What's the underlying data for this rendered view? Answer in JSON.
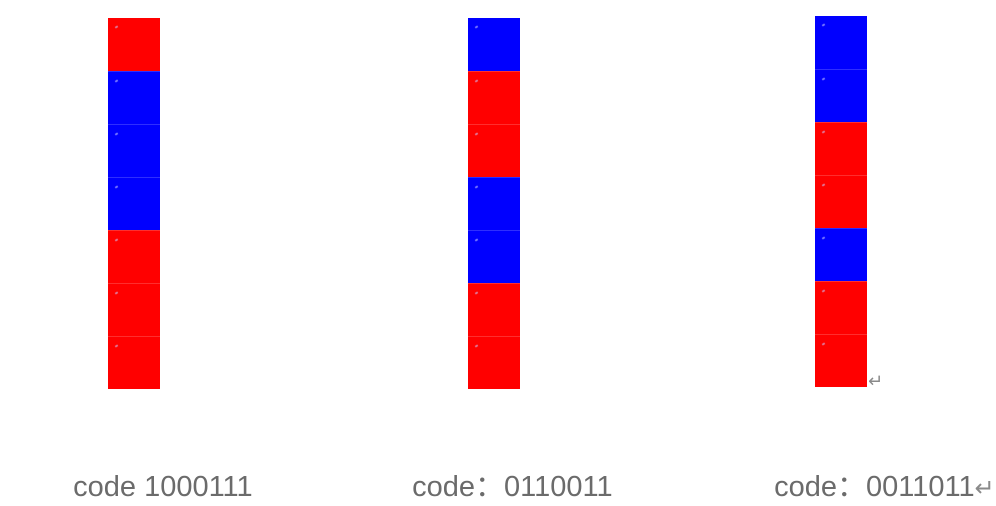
{
  "palette": {
    "1": "#ff0000",
    "0": "#0000ff"
  },
  "strips": [
    {
      "code_bits": "1000111",
      "caption": "code 1000111"
    },
    {
      "code_bits": "0110011",
      "caption": "code：0110011"
    },
    {
      "code_bits": "0011011",
      "caption": "code：0011011"
    }
  ],
  "paragraph_mark": "↵"
}
